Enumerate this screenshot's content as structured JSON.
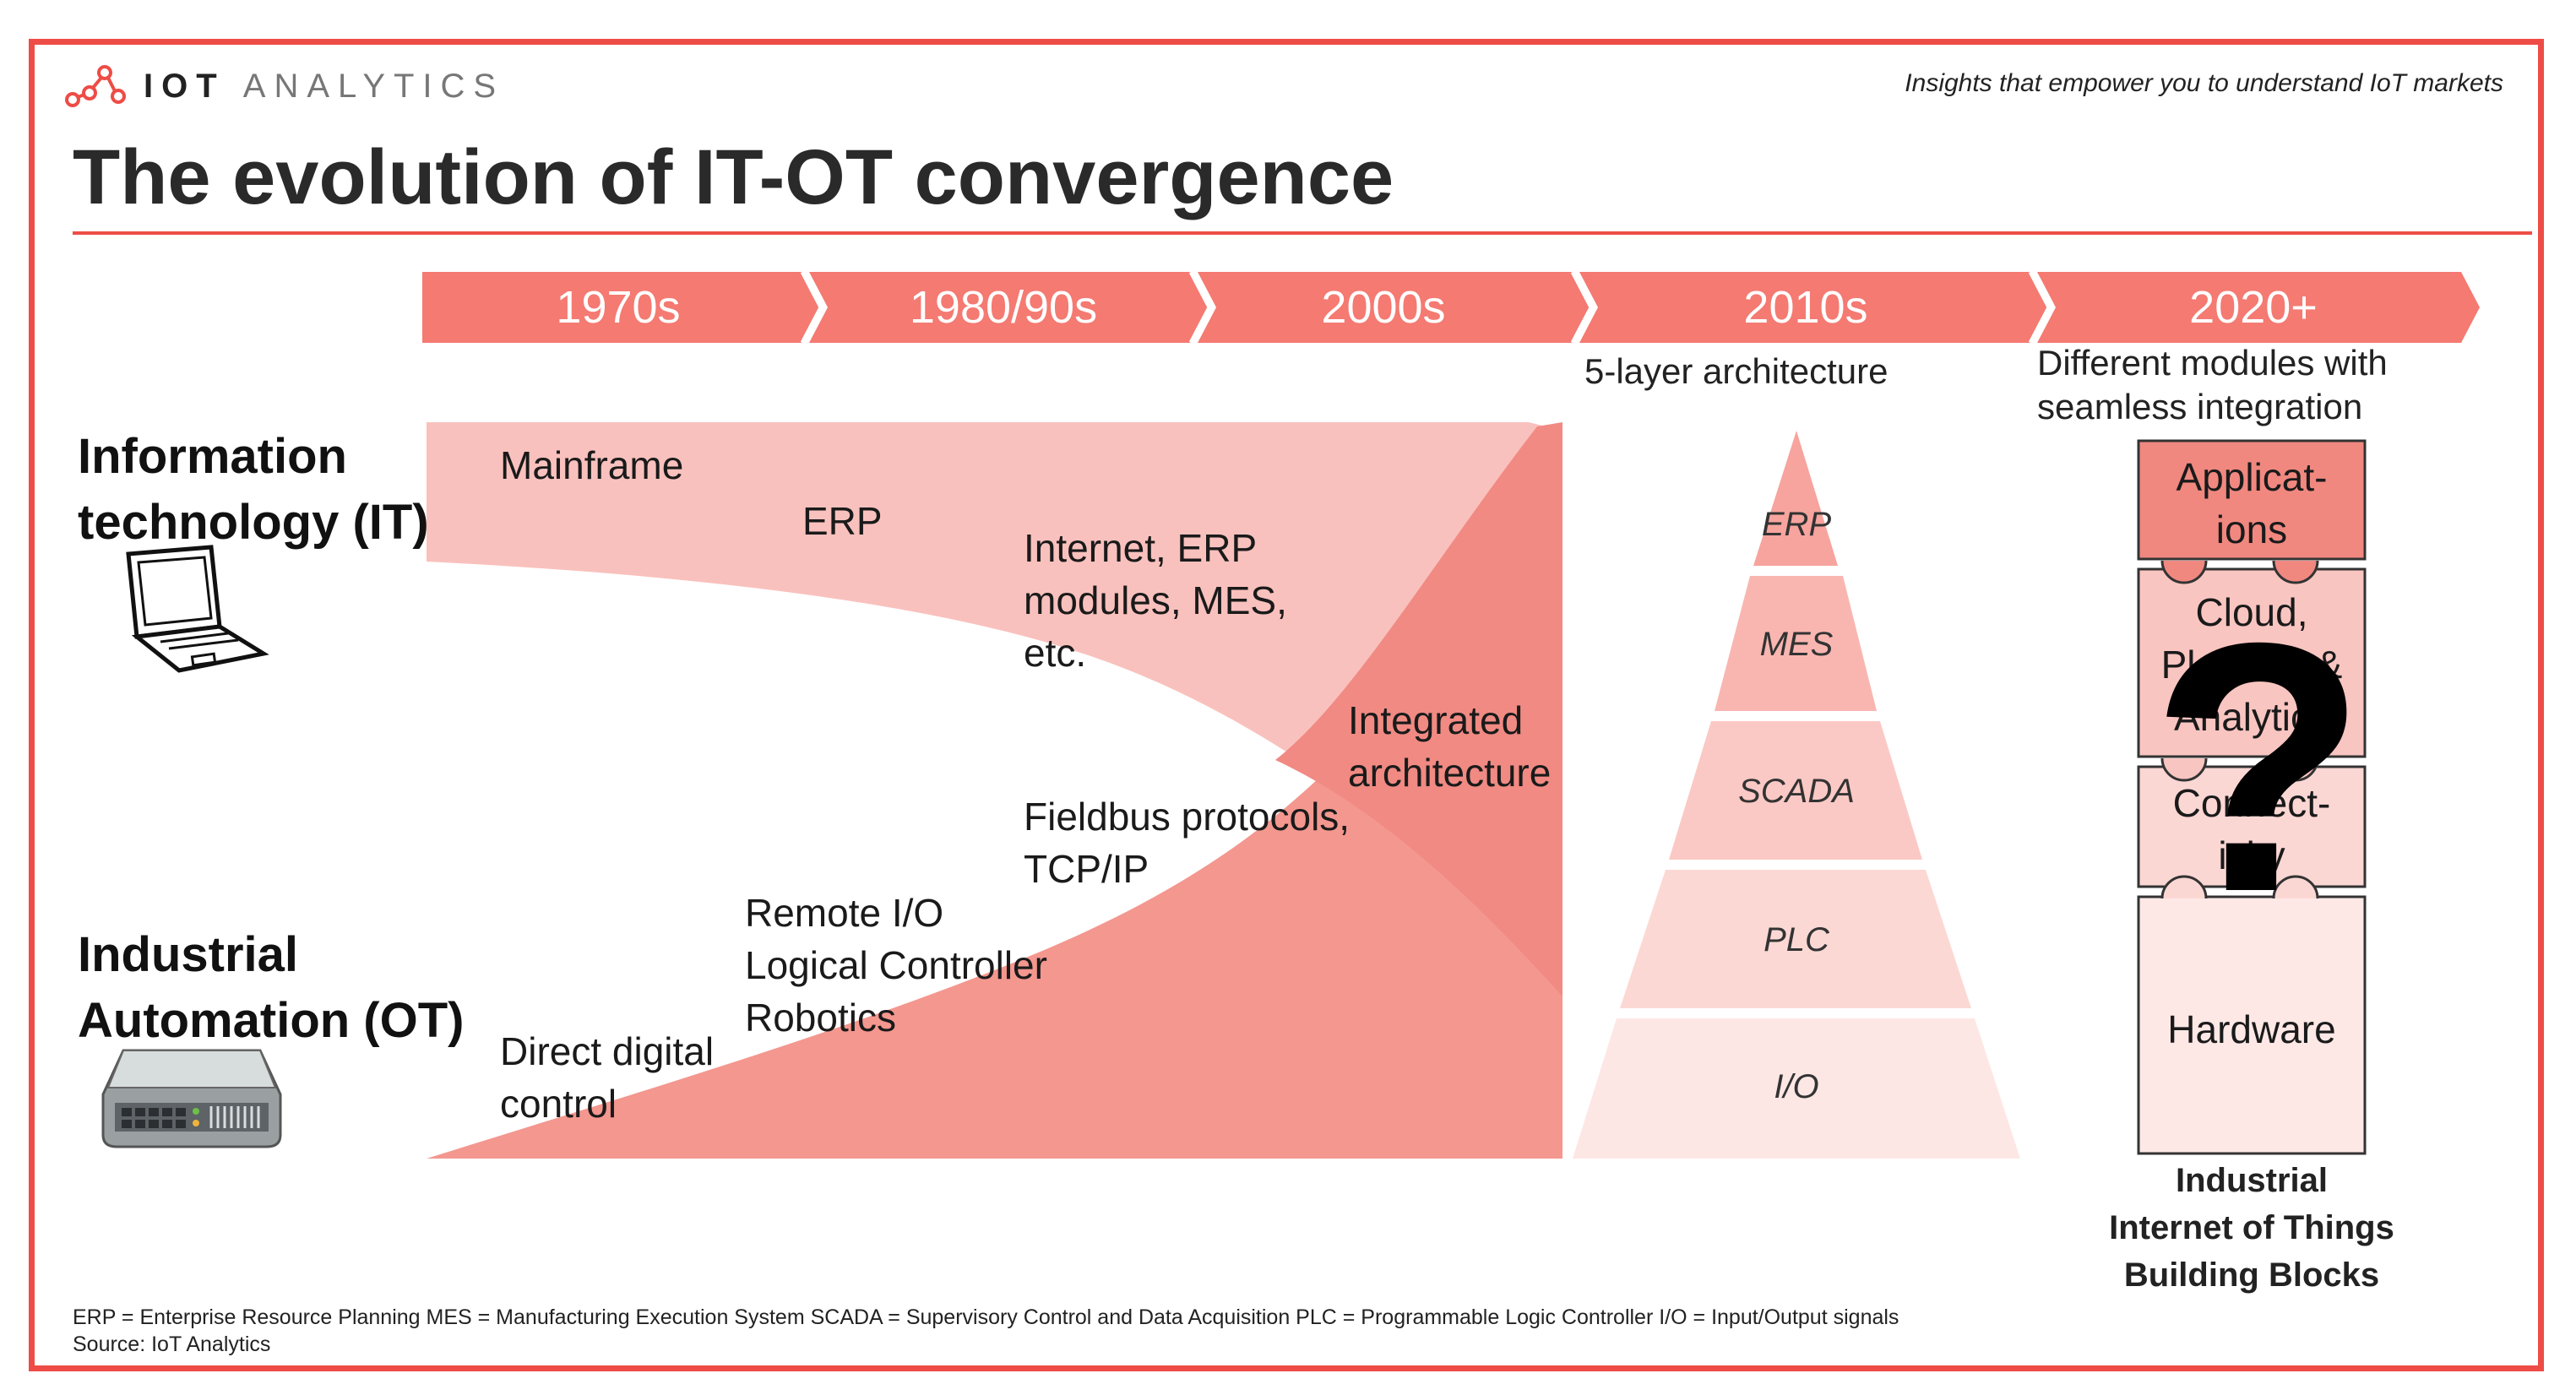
{
  "header": {
    "logo_bold": "IOT",
    "logo_light": "ANALYTICS",
    "tagline": "Insights that empower you to understand IoT markets",
    "title": "The evolution of IT-OT convergence"
  },
  "timeline": {
    "eras": [
      "1970s",
      "1980/90s",
      "2000s",
      "2010s",
      "2020+"
    ],
    "era_2010s_caption": "5-layer architecture",
    "era_2020s_caption_line1": "Different modules with",
    "era_2020s_caption_line2": "seamless integration"
  },
  "rows": {
    "it_line1": "Information",
    "it_line2": "technology (IT)",
    "ot_line1": "Industrial",
    "ot_line2": "Automation (OT)"
  },
  "it_items": {
    "mainframe": "Mainframe",
    "erp": "ERP",
    "internet_l1": "Internet, ERP",
    "internet_l2": "modules, MES,",
    "internet_l3": "etc."
  },
  "ot_items": {
    "ddc_l1": "Direct digital",
    "ddc_l2": "control",
    "remote_l1": "Remote I/O",
    "remote_l2": "Logical Controller",
    "remote_l3": "Robotics",
    "fieldbus_l1": "Fieldbus protocols,",
    "fieldbus_l2": "TCP/IP"
  },
  "integrated": {
    "l1": "Integrated",
    "l2": "architecture"
  },
  "pyramid_layers": [
    "ERP",
    "MES",
    "SCADA",
    "PLC",
    "I/O"
  ],
  "modules": {
    "applications_l1": "Applicat-",
    "applications_l2": "ions",
    "cloud_l1": "Cloud,",
    "cloud_l2": "Platform &",
    "cloud_l3": "Analytics",
    "connectivity_l1": "Connect-",
    "connectivity_l2": "ivity",
    "hardware": "Hardware",
    "question_mark": "?",
    "caption_l1": "Industrial",
    "caption_l2": "Internet of Things",
    "caption_l3": "Building Blocks"
  },
  "footer": {
    "abbreviations": "ERP = Enterprise Resource Planning  MES = Manufacturing Execution System  SCADA = Supervisory Control and Data Acquisition  PLC = Programmable Logic Controller  I/O = Input/Output signals",
    "source": "Source: IoT Analytics"
  },
  "colors": {
    "brand_red": "#ee4c46",
    "arrow": "#f47a72",
    "it_band": "#f9c1bd",
    "ot_band": "#f3978f",
    "integration": "#f08a83",
    "module_top": "#f08880",
    "module_mid": "#f9c5c1",
    "module_low": "#fbd7d4",
    "module_base": "#fde8e6"
  }
}
